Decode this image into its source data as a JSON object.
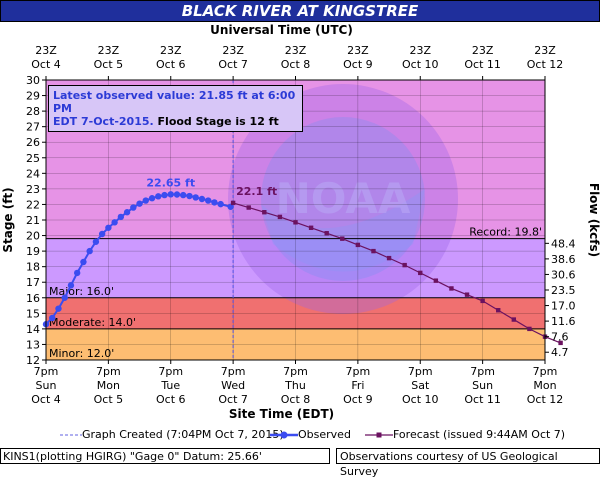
{
  "header": {
    "title": "BLACK RIVER AT KINGSTREE",
    "top_axis_title": "Universal Time (UTC)",
    "bottom_axis_title": "Site Time (EDT)"
  },
  "info_box": {
    "line1": "Latest observed value: 21.85 ft at 6:00 PM",
    "line2a": "EDT 7-Oct-2015.",
    "line2b": "Flood Stage is 12 ft"
  },
  "legend": {
    "graph_created": "Graph Created (7:04PM Oct 7, 2015)",
    "observed": "Observed",
    "forecast": "Forecast (issued 9:44AM Oct 7)"
  },
  "footer": {
    "left": "KINS1(plotting HGIRG) \"Gage 0\" Datum: 25.66'",
    "right": "Observations courtesy of US Geological Survey"
  },
  "colors": {
    "title_bg": "#1f2f9c",
    "record_band": "#e693e6",
    "major_band": "#cc99ff",
    "moderate_band": "#f07070",
    "minor_band": "#fdbd72",
    "observed": "#3b4cf0",
    "forecast": "#6b1260"
  },
  "chart_data": {
    "type": "line",
    "ylabel": "Stage (ft)",
    "y2label": "Flow (kcfs)",
    "ylim": [
      12,
      30
    ],
    "y_ticks": [
      12,
      13,
      14,
      15,
      16,
      17,
      18,
      19,
      20,
      21,
      22,
      23,
      24,
      25,
      26,
      27,
      28,
      29,
      30
    ],
    "flow_ticks": [
      {
        "stage": 12.5,
        "label": "4.7"
      },
      {
        "stage": 13.5,
        "label": "7.6"
      },
      {
        "stage": 14.5,
        "label": "11.6"
      },
      {
        "stage": 15.5,
        "label": "17.0"
      },
      {
        "stage": 16.5,
        "label": "23.5"
      },
      {
        "stage": 17.5,
        "label": "30.6"
      },
      {
        "stage": 18.5,
        "label": "38.6"
      },
      {
        "stage": 19.5,
        "label": "48.4"
      }
    ],
    "x_ticks_bottom": [
      {
        "l1": "7pm",
        "l2": "Sun",
        "l3": "Oct 4"
      },
      {
        "l1": "7pm",
        "l2": "Mon",
        "l3": "Oct 5"
      },
      {
        "l1": "7pm",
        "l2": "Tue",
        "l3": "Oct 6"
      },
      {
        "l1": "7pm",
        "l2": "Wed",
        "l3": "Oct 7"
      },
      {
        "l1": "7pm",
        "l2": "Thu",
        "l3": "Oct 8"
      },
      {
        "l1": "7pm",
        "l2": "Fri",
        "l3": "Oct 9"
      },
      {
        "l1": "7pm",
        "l2": "Sat",
        "l3": "Oct 10"
      },
      {
        "l1": "7pm",
        "l2": "Sun",
        "l3": "Oct 11"
      },
      {
        "l1": "7pm",
        "l2": "Mon",
        "l3": "Oct 12"
      }
    ],
    "x_ticks_top": [
      {
        "l1": "23Z",
        "l2": "Oct 4"
      },
      {
        "l1": "23Z",
        "l2": "Oct 5"
      },
      {
        "l1": "23Z",
        "l2": "Oct 6"
      },
      {
        "l1": "23Z",
        "l2": "Oct 7"
      },
      {
        "l1": "23Z",
        "l2": "Oct 8"
      },
      {
        "l1": "23Z",
        "l2": "Oct 9"
      },
      {
        "l1": "23Z",
        "l2": "Oct 10"
      },
      {
        "l1": "23Z",
        "l2": "Oct 11"
      },
      {
        "l1": "23Z",
        "l2": "Oct 12"
      }
    ],
    "thresholds": [
      {
        "label": "Record: 19.8'",
        "value": 19.8
      },
      {
        "label": "Major: 16.0'",
        "value": 16.0
      },
      {
        "label": "Moderate: 14.0'",
        "value": 14.0
      },
      {
        "label": "Minor: 12.0'",
        "value": 12.0
      }
    ],
    "annotations": [
      {
        "text": "22.65 ft",
        "day": 2.0,
        "stage": 22.65
      },
      {
        "text": "22.1 ft",
        "day": 3.0,
        "stage": 22.1
      }
    ],
    "graph_created_day": 3.0,
    "observed": [
      {
        "day": 0.0,
        "stage": 14.3
      },
      {
        "day": 0.1,
        "stage": 14.7
      },
      {
        "day": 0.2,
        "stage": 15.3
      },
      {
        "day": 0.3,
        "stage": 16.0
      },
      {
        "day": 0.4,
        "stage": 16.8
      },
      {
        "day": 0.5,
        "stage": 17.6
      },
      {
        "day": 0.6,
        "stage": 18.3
      },
      {
        "day": 0.7,
        "stage": 19.0
      },
      {
        "day": 0.8,
        "stage": 19.6
      },
      {
        "day": 0.9,
        "stage": 20.1
      },
      {
        "day": 1.0,
        "stage": 20.5
      },
      {
        "day": 1.1,
        "stage": 20.85
      },
      {
        "day": 1.2,
        "stage": 21.2
      },
      {
        "day": 1.3,
        "stage": 21.5
      },
      {
        "day": 1.4,
        "stage": 21.8
      },
      {
        "day": 1.5,
        "stage": 22.05
      },
      {
        "day": 1.6,
        "stage": 22.25
      },
      {
        "day": 1.7,
        "stage": 22.4
      },
      {
        "day": 1.8,
        "stage": 22.52
      },
      {
        "day": 1.9,
        "stage": 22.6
      },
      {
        "day": 2.0,
        "stage": 22.65
      },
      {
        "day": 2.1,
        "stage": 22.64
      },
      {
        "day": 2.2,
        "stage": 22.6
      },
      {
        "day": 2.3,
        "stage": 22.54
      },
      {
        "day": 2.4,
        "stage": 22.45
      },
      {
        "day": 2.5,
        "stage": 22.35
      },
      {
        "day": 2.6,
        "stage": 22.25
      },
      {
        "day": 2.7,
        "stage": 22.13
      },
      {
        "day": 2.8,
        "stage": 22.02
      },
      {
        "day": 2.96,
        "stage": 21.85
      }
    ],
    "forecast": [
      {
        "day": 3.0,
        "stage": 22.1
      },
      {
        "day": 3.25,
        "stage": 21.8
      },
      {
        "day": 3.5,
        "stage": 21.5
      },
      {
        "day": 3.75,
        "stage": 21.2
      },
      {
        "day": 4.0,
        "stage": 20.85
      },
      {
        "day": 4.25,
        "stage": 20.5
      },
      {
        "day": 4.5,
        "stage": 20.15
      },
      {
        "day": 4.75,
        "stage": 19.8
      },
      {
        "day": 5.0,
        "stage": 19.4
      },
      {
        "day": 5.25,
        "stage": 19.0
      },
      {
        "day": 5.5,
        "stage": 18.55
      },
      {
        "day": 5.75,
        "stage": 18.1
      },
      {
        "day": 6.0,
        "stage": 17.6
      },
      {
        "day": 6.25,
        "stage": 17.1
      },
      {
        "day": 6.5,
        "stage": 16.6
      },
      {
        "day": 6.75,
        "stage": 16.2
      },
      {
        "day": 7.0,
        "stage": 15.8
      },
      {
        "day": 7.25,
        "stage": 15.2
      },
      {
        "day": 7.5,
        "stage": 14.6
      },
      {
        "day": 7.75,
        "stage": 14.0
      },
      {
        "day": 8.0,
        "stage": 13.5
      },
      {
        "day": 8.25,
        "stage": 13.1
      }
    ]
  }
}
